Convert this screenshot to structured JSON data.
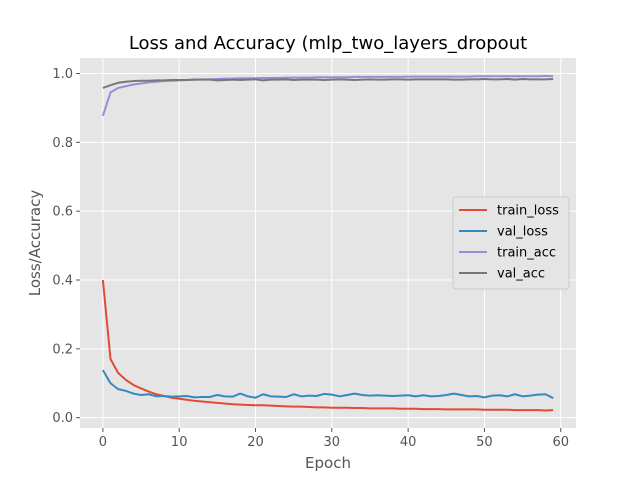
{
  "chart_data": {
    "type": "line",
    "title": "Loss and Accuracy (mlp_two_layers_dropout",
    "xlabel": "Epoch",
    "ylabel": "Loss/Accuracy",
    "xlim": [
      -3,
      62
    ],
    "ylim": [
      -0.03,
      1.045
    ],
    "xticks": [
      0,
      10,
      20,
      30,
      40,
      50,
      60
    ],
    "yticks": [
      0.0,
      0.2,
      0.4,
      0.6,
      0.8,
      1.0
    ],
    "ytick_labels": [
      "0.0",
      "0.2",
      "0.4",
      "0.6",
      "0.8",
      "1.0"
    ],
    "grid": true,
    "legend_position": "center-right",
    "x": [
      0,
      1,
      2,
      3,
      4,
      5,
      6,
      7,
      8,
      9,
      10,
      11,
      12,
      13,
      14,
      15,
      16,
      17,
      18,
      19,
      20,
      21,
      22,
      23,
      24,
      25,
      26,
      27,
      28,
      29,
      30,
      31,
      32,
      33,
      34,
      35,
      36,
      37,
      38,
      39,
      40,
      41,
      42,
      43,
      44,
      45,
      46,
      47,
      48,
      49,
      50,
      51,
      52,
      53,
      54,
      55,
      56,
      57,
      58,
      59
    ],
    "series": [
      {
        "name": "train_loss",
        "color": "#E24A33",
        "values": [
          0.4,
          0.17,
          0.13,
          0.11,
          0.095,
          0.085,
          0.076,
          0.068,
          0.063,
          0.058,
          0.055,
          0.052,
          0.049,
          0.047,
          0.045,
          0.043,
          0.041,
          0.039,
          0.038,
          0.037,
          0.036,
          0.036,
          0.035,
          0.034,
          0.033,
          0.032,
          0.032,
          0.031,
          0.03,
          0.03,
          0.029,
          0.029,
          0.029,
          0.028,
          0.028,
          0.027,
          0.027,
          0.027,
          0.027,
          0.026,
          0.026,
          0.026,
          0.025,
          0.025,
          0.025,
          0.024,
          0.024,
          0.024,
          0.024,
          0.024,
          0.023,
          0.023,
          0.023,
          0.023,
          0.022,
          0.022,
          0.022,
          0.022,
          0.021,
          0.022
        ]
      },
      {
        "name": "val_loss",
        "color": "#348ABD",
        "values": [
          0.138,
          0.1,
          0.083,
          0.078,
          0.07,
          0.066,
          0.068,
          0.062,
          0.063,
          0.061,
          0.062,
          0.063,
          0.059,
          0.06,
          0.06,
          0.066,
          0.062,
          0.061,
          0.07,
          0.062,
          0.058,
          0.068,
          0.062,
          0.061,
          0.06,
          0.068,
          0.062,
          0.064,
          0.063,
          0.069,
          0.067,
          0.062,
          0.066,
          0.07,
          0.066,
          0.064,
          0.065,
          0.064,
          0.063,
          0.064,
          0.065,
          0.062,
          0.065,
          0.062,
          0.063,
          0.066,
          0.07,
          0.066,
          0.062,
          0.063,
          0.059,
          0.064,
          0.065,
          0.062,
          0.068,
          0.062,
          0.064,
          0.067,
          0.068,
          0.057
        ]
      },
      {
        "name": "train_acc",
        "color": "#988ED5",
        "values": [
          0.877,
          0.945,
          0.958,
          0.963,
          0.968,
          0.971,
          0.974,
          0.976,
          0.978,
          0.979,
          0.98,
          0.981,
          0.982,
          0.983,
          0.983,
          0.984,
          0.985,
          0.985,
          0.986,
          0.986,
          0.986,
          0.987,
          0.987,
          0.987,
          0.988,
          0.988,
          0.988,
          0.988,
          0.989,
          0.989,
          0.989,
          0.989,
          0.989,
          0.99,
          0.99,
          0.99,
          0.99,
          0.99,
          0.99,
          0.99,
          0.991,
          0.991,
          0.991,
          0.991,
          0.991,
          0.991,
          0.991,
          0.991,
          0.991,
          0.992,
          0.992,
          0.992,
          0.992,
          0.992,
          0.992,
          0.992,
          0.992,
          0.992,
          0.993,
          0.992
        ]
      },
      {
        "name": "val_acc",
        "color": "#777777",
        "values": [
          0.958,
          0.966,
          0.973,
          0.976,
          0.978,
          0.979,
          0.979,
          0.98,
          0.98,
          0.981,
          0.981,
          0.981,
          0.982,
          0.982,
          0.982,
          0.98,
          0.981,
          0.982,
          0.981,
          0.982,
          0.983,
          0.98,
          0.982,
          0.982,
          0.983,
          0.981,
          0.982,
          0.982,
          0.982,
          0.981,
          0.982,
          0.983,
          0.982,
          0.981,
          0.982,
          0.983,
          0.982,
          0.982,
          0.983,
          0.983,
          0.982,
          0.983,
          0.983,
          0.983,
          0.983,
          0.983,
          0.982,
          0.982,
          0.983,
          0.983,
          0.984,
          0.983,
          0.983,
          0.984,
          0.982,
          0.984,
          0.983,
          0.983,
          0.983,
          0.984
        ]
      }
    ]
  }
}
